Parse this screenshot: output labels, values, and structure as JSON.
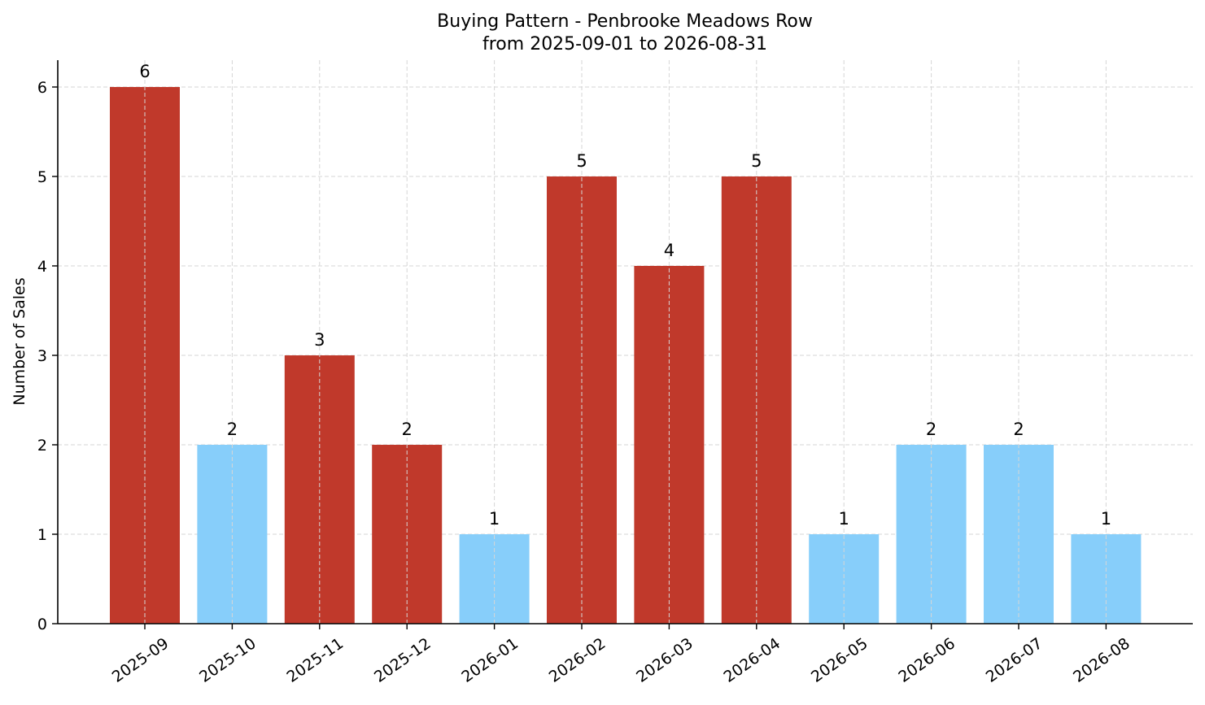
{
  "chart_data": {
    "type": "bar",
    "title": "Buying Pattern - Penbrooke Meadows Row",
    "subtitle": "from 2025-09-01 to 2026-08-31",
    "xlabel": "",
    "ylabel": "Number of Sales",
    "categories": [
      "2025-09",
      "2025-10",
      "2025-11",
      "2025-12",
      "2026-01",
      "2026-02",
      "2026-03",
      "2026-04",
      "2026-05",
      "2026-06",
      "2026-07",
      "2026-08"
    ],
    "values": [
      6,
      2,
      3,
      2,
      1,
      5,
      4,
      5,
      1,
      2,
      2,
      1
    ],
    "bar_colors": [
      "#c0392b",
      "#87cefa",
      "#c0392b",
      "#c0392b",
      "#87cefa",
      "#c0392b",
      "#c0392b",
      "#c0392b",
      "#87cefa",
      "#87cefa",
      "#87cefa",
      "#87cefa"
    ],
    "ylim": [
      0,
      6.3
    ],
    "yticks": [
      0,
      1,
      2,
      3,
      4,
      5,
      6
    ],
    "grid": true,
    "legend": "none"
  }
}
